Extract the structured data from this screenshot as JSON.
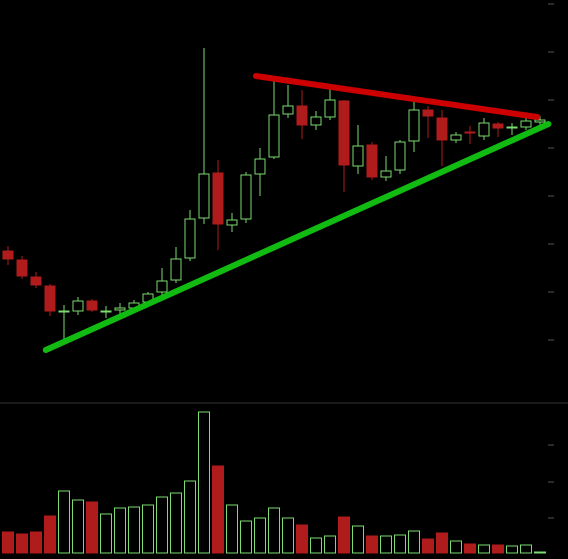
{
  "chart_data": {
    "type": "candlestick",
    "up_color": "#7ddc6f",
    "down_color": "#b01c1c",
    "open": [
      149,
      140,
      123,
      114,
      88,
      89,
      99,
      88,
      90,
      92,
      98,
      108,
      120,
      142,
      182,
      227,
      175,
      181,
      226,
      243,
      286,
      294,
      275,
      283,
      299,
      234,
      255,
      223,
      230,
      259,
      290,
      282,
      260,
      268,
      264,
      276,
      272,
      273,
      278
    ],
    "high": [
      154,
      144,
      128,
      116,
      95,
      103,
      101,
      94,
      97,
      100,
      108,
      132,
      153,
      190,
      352,
      240,
      187,
      228,
      252,
      320,
      315,
      310,
      289,
      312,
      300,
      275,
      258,
      244,
      260,
      300,
      294,
      290,
      268,
      274,
      282,
      278,
      277,
      283,
      284
    ],
    "low": [
      135,
      121,
      112,
      84,
      60,
      85,
      88,
      82,
      85,
      89,
      95,
      104,
      117,
      139,
      176,
      150,
      168,
      177,
      204,
      241,
      282,
      261,
      270,
      280,
      208,
      226,
      220,
      219,
      226,
      248,
      262,
      234,
      257,
      256,
      260,
      263,
      265,
      270,
      275
    ],
    "close": [
      141,
      124,
      115,
      89,
      89,
      99,
      90,
      89,
      92,
      97,
      106,
      119,
      141,
      181,
      226,
      176,
      180,
      225,
      241,
      285,
      294,
      275,
      283,
      300,
      235,
      254,
      223,
      229,
      258,
      290,
      284,
      260,
      265,
      267,
      277,
      272,
      273,
      279,
      280
    ],
    "volume": [
      21,
      19,
      21,
      37,
      62,
      53,
      51,
      39,
      45,
      46,
      48,
      56,
      60,
      72,
      141,
      87,
      48,
      32,
      35,
      45,
      35,
      28,
      15,
      17,
      36,
      27,
      17,
      17,
      18,
      22,
      14,
      20,
      12,
      9,
      8,
      8,
      7,
      8,
      1
    ],
    "ylim": [
      0,
      400
    ],
    "yticks": [
      60,
      108,
      156,
      204,
      252,
      300,
      348,
      396
    ],
    "vol_lim": [
      0,
      148
    ],
    "vol_ticks": [
      35,
      71,
      108
    ],
    "trendlines": [
      {
        "color": "#cc0000",
        "x": [
          17.7,
          37.8
        ],
        "values": [
          324,
          283
        ]
      },
      {
        "color": "#11bb11",
        "x": [
          2.7,
          38.6
        ],
        "values": [
          50,
          276
        ]
      }
    ]
  }
}
